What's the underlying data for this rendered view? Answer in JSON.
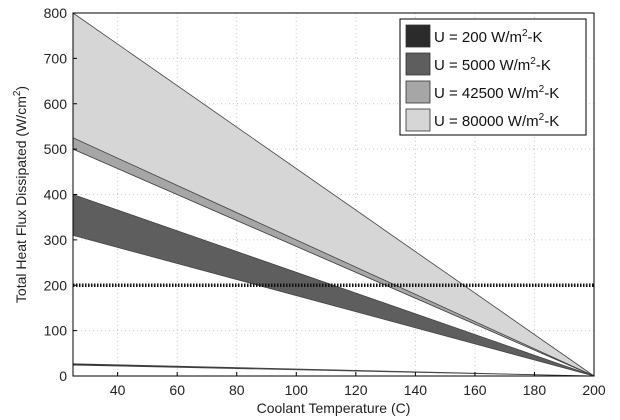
{
  "chart_data": {
    "type": "area",
    "xlabel": "Coolant Temperature (C)",
    "ylabel_main": "Total Heat Flux Dissipated (W/cm",
    "ylabel_sup": "2",
    "ylabel_tail": ")",
    "xlim": [
      25,
      200
    ],
    "ylim": [
      0,
      800
    ],
    "x_ticks": [
      40,
      60,
      80,
      100,
      120,
      140,
      160,
      180,
      200
    ],
    "y_ticks": [
      0,
      100,
      200,
      300,
      400,
      500,
      600,
      700,
      800
    ],
    "grid": true,
    "legend_position": "top-right",
    "reference_line": {
      "y": 200,
      "style": "dotted-dark"
    },
    "series": [
      {
        "name_prefix": "U =   200 W/m",
        "name_sup": "2",
        "name_suffix": "-K",
        "color": "#2b2b2b",
        "x": [
          25,
          200
        ],
        "lower": [
          24,
          0
        ],
        "upper": [
          27,
          0
        ]
      },
      {
        "name_prefix": "U =  5000 W/m",
        "name_sup": "2",
        "name_suffix": "-K",
        "color": "#5e5e5e",
        "x": [
          25,
          200
        ],
        "lower": [
          310,
          0
        ],
        "upper": [
          400,
          0
        ]
      },
      {
        "name_prefix": "U = 42500 W/m",
        "name_sup": "2",
        "name_suffix": "-K",
        "color": "#a6a6a6",
        "x": [
          25,
          200
        ],
        "lower": [
          500,
          0
        ],
        "upper": [
          525,
          0
        ]
      },
      {
        "name_prefix": "U = 80000 W/m",
        "name_sup": "2",
        "name_suffix": "-K",
        "color": "#d6d6d6",
        "x": [
          25,
          200
        ],
        "lower": [
          500,
          0
        ],
        "upper": [
          800,
          0
        ]
      }
    ]
  }
}
